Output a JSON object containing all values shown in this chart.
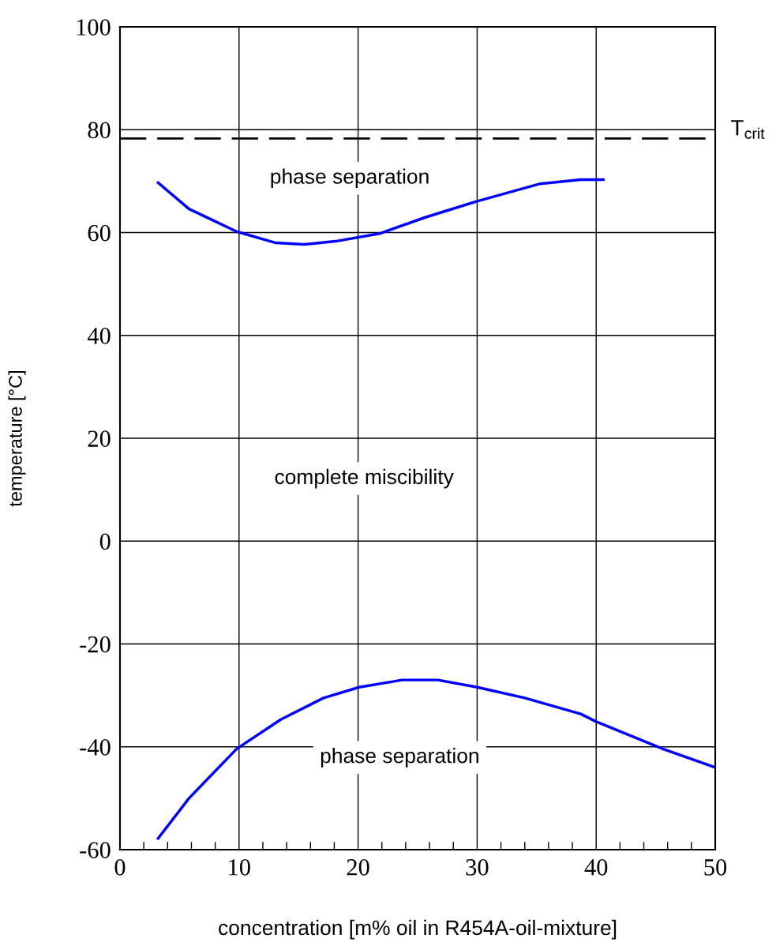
{
  "chart_data": {
    "type": "line",
    "xlabel": "concentration [m% oil in R454A-oil-mixture]",
    "ylabel": "temperature [°C]",
    "xlim": [
      0,
      50
    ],
    "xticks": [
      0,
      10,
      20,
      30,
      40,
      50
    ],
    "ylim": [
      -60,
      100
    ],
    "yticks": [
      -60,
      -40,
      -20,
      0,
      20,
      40,
      60,
      80,
      100
    ],
    "grid": true,
    "marker": "none",
    "line_style": "solid",
    "series": [
      {
        "color": "#0000ff",
        "x": [
          3.2,
          5.8,
          9.8,
          13.1,
          15.5,
          18.1,
          21.8,
          25.7,
          30,
          35.3,
          38.7,
          40.6
        ],
        "values": [
          69.7,
          64.6,
          60.2,
          58.0,
          57.7,
          58.3,
          59.8,
          63.0,
          66.1,
          69.5,
          70.3,
          70.3
        ]
      },
      {
        "color": "#0000ff",
        "x": [
          3.2,
          5.8,
          9.8,
          13.5,
          17.1,
          20.1,
          23.7,
          26.7,
          30,
          34,
          38.7,
          40,
          45.6,
          50
        ],
        "values": [
          -57.8,
          -50.0,
          -40.4,
          -34.7,
          -30.5,
          -28.4,
          -27.0,
          -27.0,
          -28.4,
          -30.5,
          -33.6,
          -35.1,
          -40.4,
          -44.0
        ]
      }
    ],
    "ref_lines": [
      {
        "axis": "y",
        "value": 78.3,
        "label": "T$_{crit}$",
        "color": "#000000",
        "line_style": "dashed"
      }
    ],
    "annotations": [
      "phase separation",
      "complete miscibility",
      "phase separation"
    ]
  }
}
